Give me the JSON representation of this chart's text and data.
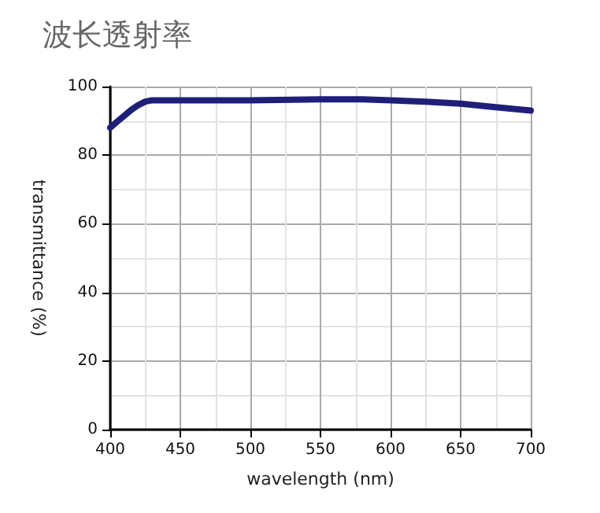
{
  "chart_data": {
    "type": "line",
    "title": "波长透射率",
    "xlabel": "wavelength (nm)",
    "ylabel": "transmittance (%)",
    "x": [
      400,
      405,
      410,
      415,
      420,
      425,
      430,
      440,
      450,
      500,
      550,
      580,
      600,
      625,
      650,
      675,
      700
    ],
    "series": [
      {
        "color": "#1f1f7a",
        "values": [
          88,
          89.8,
          91.5,
          93.2,
          94.6,
          95.6,
          96,
          96,
          96,
          96,
          96.3,
          96.3,
          96,
          95.6,
          95,
          94,
          93
        ]
      }
    ],
    "xlim": [
      400,
      700
    ],
    "xticks": [
      400,
      450,
      500,
      550,
      600,
      650,
      700
    ],
    "ylim": [
      0,
      100
    ],
    "yticks": [
      0,
      20,
      40,
      60,
      80,
      100
    ],
    "grid": true,
    "marker": "none",
    "line_style": "solid"
  }
}
